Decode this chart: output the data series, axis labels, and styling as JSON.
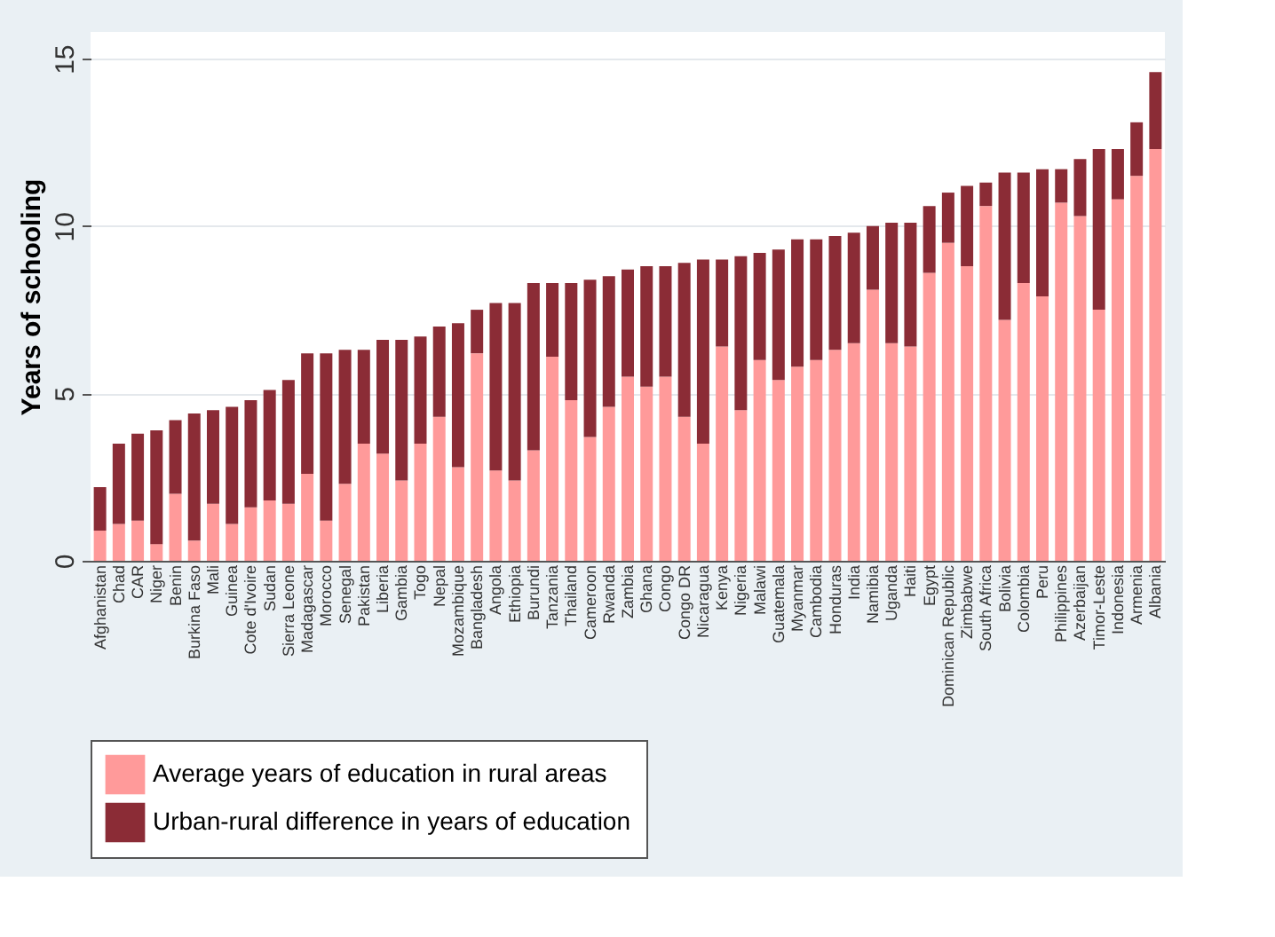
{
  "chart_data": {
    "type": "bar",
    "stacked": true,
    "ylabel": "Years of schooling",
    "categories": [
      "Afghanistan",
      "Chad",
      "CAR",
      "Niger",
      "Benin",
      "Burkina Faso",
      "Mali",
      "Guinea",
      "Cote d'Ivoire",
      "Sudan",
      "Sierra Leone",
      "Madagascar",
      "Morocco",
      "Senegal",
      "Pakistan",
      "Liberia",
      "Gambia",
      "Togo",
      "Nepal",
      "Mozambique",
      "Bangladesh",
      "Angola",
      "Ethiopia",
      "Burundi",
      "Tanzania",
      "Thailand",
      "Cameroon",
      "Rwanda",
      "Zambia",
      "Ghana",
      "Congo",
      "Congo DR",
      "Nicaragua",
      "Kenya",
      "Nigeria",
      "Malawi",
      "Guatemala",
      "Myanmar",
      "Cambodia",
      "Honduras",
      "India",
      "Namibia",
      "Uganda",
      "Haiti",
      "Egypt",
      "Dominican Republic",
      "Zimbabwe",
      "South Africa",
      "Bolivia",
      "Colombia",
      "Peru",
      "Philippines",
      "Azerbaijan",
      "Timor-Leste",
      "Indonesia",
      "Armenia",
      "Albania"
    ],
    "series": [
      {
        "name": "Average years of education in rural areas",
        "color": "#ff9a9a",
        "values": [
          0.9,
          1.1,
          1.2,
          0.5,
          2.0,
          0.6,
          1.7,
          1.1,
          1.6,
          1.8,
          1.7,
          2.6,
          1.2,
          2.3,
          3.5,
          3.2,
          2.4,
          3.5,
          4.3,
          2.8,
          6.2,
          2.7,
          2.4,
          3.3,
          6.1,
          4.8,
          3.7,
          4.6,
          5.5,
          5.2,
          5.5,
          4.3,
          3.5,
          6.4,
          4.5,
          6.0,
          5.4,
          5.8,
          6.0,
          6.3,
          6.5,
          8.1,
          6.5,
          6.4,
          8.6,
          9.5,
          8.8,
          10.6,
          7.2,
          8.3,
          7.9,
          10.7,
          10.3,
          7.5,
          10.8,
          11.5,
          12.3
        ]
      },
      {
        "name": "Urban-rural difference in years of education",
        "color": "#8b2c36",
        "values": [
          1.3,
          2.4,
          2.6,
          3.4,
          2.2,
          3.8,
          2.8,
          3.5,
          3.2,
          3.3,
          3.7,
          3.6,
          5.0,
          4.0,
          2.8,
          3.4,
          4.2,
          3.2,
          2.7,
          4.3,
          1.3,
          5.0,
          5.3,
          5.0,
          2.2,
          3.5,
          4.7,
          3.9,
          3.2,
          3.6,
          3.3,
          4.6,
          5.5,
          2.6,
          4.6,
          3.2,
          3.9,
          3.8,
          3.6,
          3.4,
          3.3,
          1.9,
          3.6,
          3.7,
          2.0,
          1.5,
          2.4,
          0.7,
          4.4,
          3.3,
          3.8,
          1.0,
          1.7,
          4.8,
          1.5,
          1.6,
          2.3
        ]
      }
    ],
    "ylim": [
      0,
      15.8
    ],
    "yticks": [
      0,
      5,
      10,
      15
    ],
    "grid": "y",
    "legend": "bottom"
  }
}
